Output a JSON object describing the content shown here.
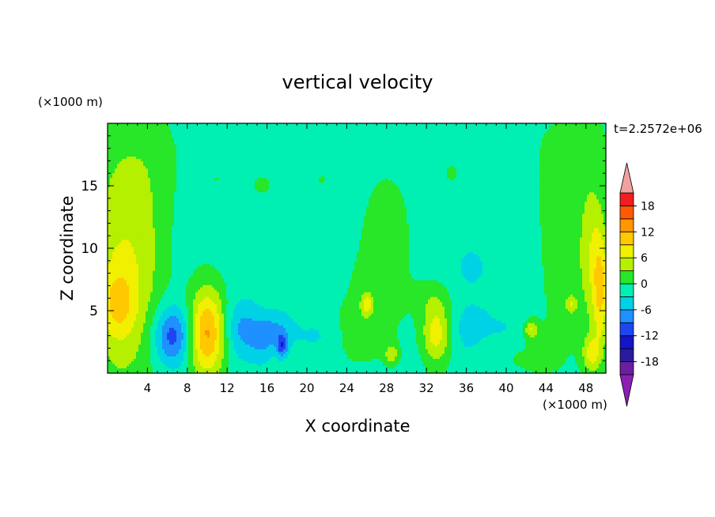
{
  "chart_data": {
    "type": "heatmap",
    "title": "vertical velocity",
    "xlabel": "X coordinate",
    "ylabel": "Z coordinate",
    "x_unit": "(×1000 m)",
    "y_unit": "(×1000 m)",
    "time_label": "t=2.2572e+06",
    "xlim": [
      0,
      50
    ],
    "ylim": [
      0,
      20
    ],
    "x_ticks": [
      4,
      8,
      12,
      16,
      20,
      24,
      28,
      32,
      36,
      40,
      44,
      48
    ],
    "y_ticks": [
      5,
      10,
      15
    ],
    "background_value": -1.5,
    "colorbar": {
      "levels": [
        -21,
        -18,
        -15,
        -12,
        -9,
        -6,
        -3,
        0,
        3,
        6,
        9,
        12,
        15,
        18,
        21
      ],
      "labels": [
        18,
        12,
        6,
        0,
        -6,
        -12,
        -18
      ],
      "colors": [
        "#6a1fa0",
        "#2a1a9e",
        "#1414c8",
        "#1e46f0",
        "#1e90ff",
        "#00d2e6",
        "#00f0b4",
        "#28e628",
        "#b4f000",
        "#f0f000",
        "#ffc800",
        "#ff9600",
        "#ff5a00",
        "#f01e1e"
      ],
      "under_color": "#8c1eb4",
      "over_color": "#f0a0a0"
    },
    "features": [
      {
        "x": 1.5,
        "z": 7.5,
        "sx": 2.4,
        "sz": 6.5,
        "w": 8
      },
      {
        "x": 1.0,
        "z": 5.5,
        "sx": 1.2,
        "sz": 1.8,
        "w": 5
      },
      {
        "x": 3.0,
        "z": 17.5,
        "sx": 4.0,
        "sz": 3.0,
        "w": 1.8
      },
      {
        "x": 4.5,
        "z": 12.0,
        "sx": 1.5,
        "sz": 5.0,
        "w": 1.5
      },
      {
        "x": 6.5,
        "z": 3.0,
        "sx": 1.3,
        "sz": 1.6,
        "w": -9.5
      },
      {
        "x": 10.0,
        "z": 3.2,
        "sx": 1.3,
        "sz": 2.6,
        "w": 14
      },
      {
        "x": 13.5,
        "z": 3.5,
        "sx": 1.3,
        "sz": 1.6,
        "w": -5.5
      },
      {
        "x": 15.5,
        "z": 2.5,
        "sx": 0.8,
        "sz": 1.2,
        "w": -3.5
      },
      {
        "x": 17.5,
        "z": 2.2,
        "sx": 0.4,
        "sz": 0.6,
        "w": -9
      },
      {
        "x": 17.0,
        "z": 3.5,
        "sx": 1.2,
        "sz": 1.0,
        "w": -4.5
      },
      {
        "x": 21.0,
        "z": 3.0,
        "sx": 1.5,
        "sz": 1.0,
        "w": -2.0
      },
      {
        "x": 15.5,
        "z": 15.0,
        "sx": 1.2,
        "sz": 1.0,
        "w": 1.8
      },
      {
        "x": 21.5,
        "z": 15.5,
        "sx": 0.8,
        "sz": 0.6,
        "w": 1.6
      },
      {
        "x": 11.0,
        "z": 15.5,
        "sx": 0.5,
        "sz": 0.5,
        "w": 1.4
      },
      {
        "x": 28.0,
        "z": 12.0,
        "sx": 2.2,
        "sz": 4.0,
        "w": 2.2
      },
      {
        "x": 27.0,
        "z": 6.0,
        "sx": 2.5,
        "sz": 3.0,
        "w": 2.0
      },
      {
        "x": 25.0,
        "z": 3.0,
        "sx": 2.0,
        "sz": 2.0,
        "w": 2.0
      },
      {
        "x": 26.0,
        "z": 5.5,
        "sx": 0.4,
        "sz": 0.6,
        "w": 7
      },
      {
        "x": 28.5,
        "z": 1.5,
        "sx": 0.5,
        "sz": 0.6,
        "w": 6
      },
      {
        "x": 33.0,
        "z": 3.2,
        "sx": 1.0,
        "sz": 1.8,
        "w": 9
      },
      {
        "x": 32.5,
        "z": 6.0,
        "sx": 1.5,
        "sz": 1.0,
        "w": 2.0
      },
      {
        "x": 34.5,
        "z": 16.0,
        "sx": 0.9,
        "sz": 0.8,
        "w": 1.8
      },
      {
        "x": 36.5,
        "z": 3.5,
        "sx": 1.5,
        "sz": 1.5,
        "w": -3.0
      },
      {
        "x": 36.5,
        "z": 8.5,
        "sx": 1.5,
        "sz": 1.5,
        "w": -2.0
      },
      {
        "x": 40.0,
        "z": 3.0,
        "sx": 1.5,
        "sz": 1.2,
        "w": -2.5
      },
      {
        "x": 39.0,
        "z": 2.0,
        "sx": 1.5,
        "sz": 1.0,
        "w": 2.0
      },
      {
        "x": 42.0,
        "z": 1.5,
        "sx": 2.0,
        "sz": 1.5,
        "w": 1.8
      },
      {
        "x": 45.5,
        "z": 6.0,
        "sx": 2.0,
        "sz": 6.0,
        "w": 1.8
      },
      {
        "x": 48.5,
        "z": 10.0,
        "sx": 1.0,
        "sz": 4.5,
        "w": 6
      },
      {
        "x": 49.5,
        "z": 6.5,
        "sx": 0.6,
        "sz": 3.5,
        "w": 9
      },
      {
        "x": 48.5,
        "z": 1.5,
        "sx": 0.6,
        "sz": 1.0,
        "w": 7
      },
      {
        "x": 47.5,
        "z": 18.5,
        "sx": 3.5,
        "sz": 2.5,
        "w": 1.6
      },
      {
        "x": 44.5,
        "z": 14.0,
        "sx": 1.5,
        "sz": 4.0,
        "w": 1.2
      },
      {
        "x": 42.5,
        "z": 3.5,
        "sx": 0.5,
        "sz": 0.5,
        "w": 7
      },
      {
        "x": 46.5,
        "z": 5.5,
        "sx": 0.4,
        "sz": 0.5,
        "w": 6
      }
    ]
  }
}
